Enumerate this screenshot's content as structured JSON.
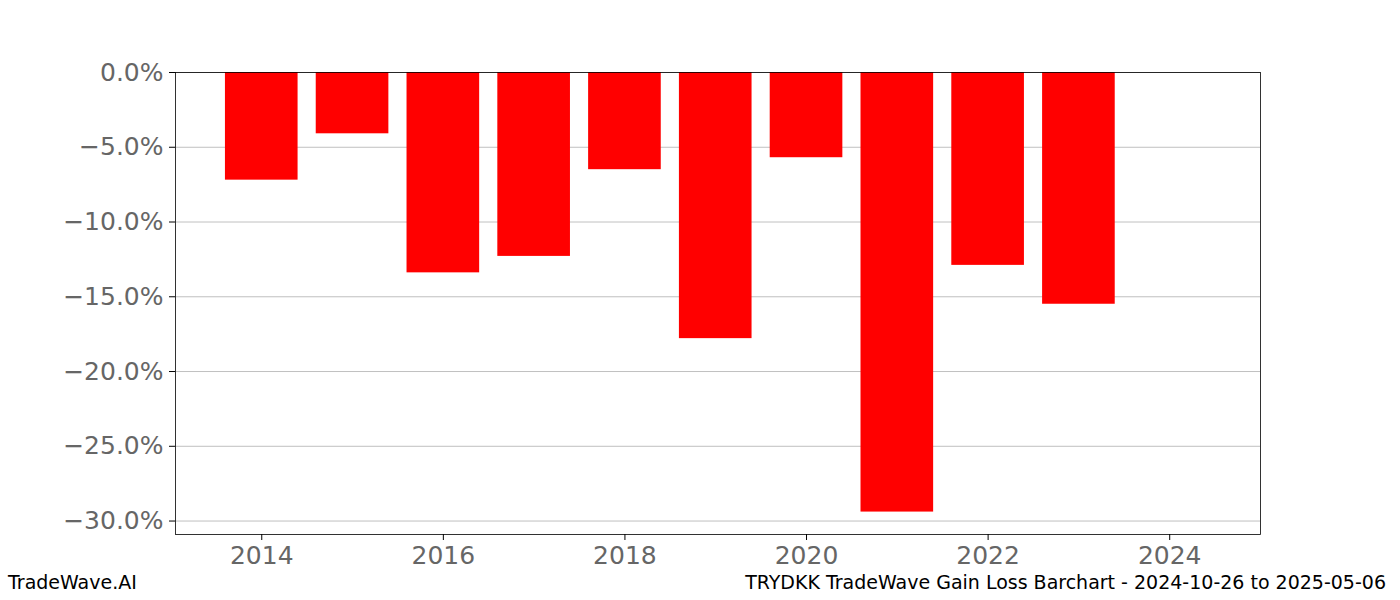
{
  "chart_data": {
    "type": "bar",
    "title": "TRYDKK TradeWave Gain Loss Barchart - 2024-10-26 to 2025-05-06",
    "source": "TradeWave.AI",
    "x": [
      2014,
      2015,
      2016,
      2017,
      2018,
      2019,
      2020,
      2021,
      2022,
      2023
    ],
    "values": [
      -7.2,
      -4.1,
      -13.4,
      -12.3,
      -6.5,
      -17.8,
      -5.7,
      -29.4,
      -12.9,
      -15.5
    ],
    "color": "#ff0000",
    "xlim": [
      2013.05,
      2025.0
    ],
    "xticks": [
      2014,
      2016,
      2018,
      2020,
      2022,
      2024
    ],
    "ylim": [
      -30.9,
      0
    ],
    "yticks": [
      {
        "value": 0,
        "label": "0.0%"
      },
      {
        "value": -5,
        "label": "−5.0%"
      },
      {
        "value": -10,
        "label": "−10.0%"
      },
      {
        "value": -15,
        "label": "−15.0%"
      },
      {
        "value": -20,
        "label": "−20.0%"
      },
      {
        "value": -25,
        "label": "−25.0%"
      },
      {
        "value": -30,
        "label": "−30.0%"
      }
    ],
    "grid": true
  }
}
